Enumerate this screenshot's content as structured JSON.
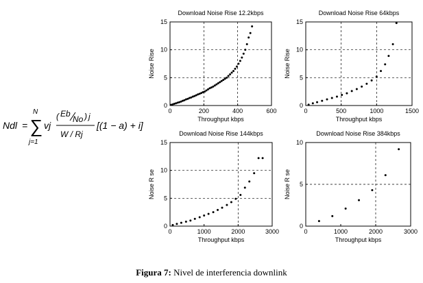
{
  "formula": {
    "lhs": "Ndl",
    "eq": "=",
    "sigma": "∑",
    "upper": "N",
    "lower": "j=1",
    "coef": "vj",
    "num_eb": "Eb",
    "num_no": "No",
    "num_j": "j",
    "den": "W / Rj",
    "tail": "[(1 − a) + i]"
  },
  "caption": {
    "label": "Figura 7:",
    "text": "Nivel de interferencia downlink"
  },
  "chart_data": [
    {
      "type": "scatter",
      "title": "Download Noise Rise 12.2kbps",
      "xlabel": "Throughput kbps",
      "ylabel": "Noise Rise",
      "xlim": [
        0,
        600
      ],
      "ylim": [
        0,
        15
      ],
      "xticks": [
        0,
        200,
        400,
        600
      ],
      "yticks": [
        0,
        5,
        10,
        15
      ],
      "grid": {
        "x": [
          200,
          400
        ],
        "y": [
          5,
          10
        ]
      },
      "series": [
        {
          "x": [
            5,
            15,
            25,
            35,
            45,
            55,
            65,
            75,
            85,
            95,
            105,
            115,
            125,
            135,
            145,
            155,
            165,
            175,
            185,
            195,
            205,
            215,
            225,
            235,
            245,
            255,
            265,
            275,
            285,
            295,
            305,
            315,
            325,
            335,
            345,
            355,
            365,
            375,
            385,
            395,
            405,
            415,
            425,
            435,
            445,
            455,
            465,
            475,
            485
          ],
          "y": [
            0.1,
            0.2,
            0.3,
            0.4,
            0.5,
            0.6,
            0.7,
            0.85,
            0.95,
            1.1,
            1.2,
            1.35,
            1.45,
            1.6,
            1.7,
            1.85,
            2.0,
            2.1,
            2.25,
            2.4,
            2.5,
            2.7,
            2.9,
            3.1,
            3.25,
            3.4,
            3.6,
            3.8,
            4.0,
            4.2,
            4.4,
            4.6,
            4.8,
            5.0,
            5.3,
            5.6,
            5.9,
            6.2,
            6.6,
            7.0,
            7.5,
            8.0,
            8.6,
            9.3,
            10.0,
            11.0,
            12.2,
            13.0,
            14.2
          ]
        }
      ]
    },
    {
      "type": "scatter",
      "title": "Download Noise Rise 64kbps",
      "xlabel": "Throughput kbps",
      "ylabel": "Noise Rise",
      "xlim": [
        0,
        1500
      ],
      "ylim": [
        0,
        15
      ],
      "xticks": [
        0,
        500,
        1000,
        1500
      ],
      "yticks": [
        0,
        5,
        10,
        15
      ],
      "grid": {
        "x": [
          500,
          1000
        ],
        "y": [
          5,
          10
        ]
      },
      "series": [
        {
          "x": [
            40,
            100,
            160,
            230,
            300,
            370,
            440,
            510,
            580,
            650,
            720,
            790,
            860,
            930,
            1000,
            1060,
            1120,
            1170,
            1230,
            1280
          ],
          "y": [
            0.15,
            0.4,
            0.6,
            0.85,
            1.1,
            1.35,
            1.6,
            1.9,
            2.2,
            2.6,
            2.95,
            3.4,
            3.9,
            4.5,
            5.2,
            6.2,
            7.4,
            8.9,
            11.0,
            14.8
          ]
        }
      ]
    },
    {
      "type": "scatter",
      "title": "Download Noise Rise 144kbps",
      "xlabel": "Throughput kbps",
      "ylabel": "Noise R se",
      "xlim": [
        0,
        3000
      ],
      "ylim": [
        0,
        15
      ],
      "xticks": [
        0,
        1000,
        2000,
        3000
      ],
      "yticks": [
        0,
        5,
        10,
        15
      ],
      "grid": {
        "x": [
          2000
        ],
        "y": [
          5,
          10
        ]
      },
      "series": [
        {
          "x": [
            80,
            200,
            330,
            470,
            600,
            730,
            870,
            1000,
            1130,
            1270,
            1400,
            1530,
            1670,
            1800,
            1930,
            2070,
            2200,
            2330,
            2470,
            2600,
            2720
          ],
          "y": [
            0.2,
            0.4,
            0.6,
            0.8,
            1.0,
            1.3,
            1.6,
            1.9,
            2.2,
            2.5,
            2.9,
            3.3,
            3.8,
            4.3,
            4.9,
            5.6,
            6.9,
            8.0,
            9.5,
            12.2,
            12.2
          ]
        }
      ]
    },
    {
      "type": "scatter",
      "title": "Download Noise Rise 384kbps",
      "xlabel": "Throughput kbps",
      "ylabel": "Noise R se",
      "xlim": [
        0,
        3000
      ],
      "ylim": [
        0,
        10
      ],
      "xticks": [
        0,
        1000,
        2000,
        3000
      ],
      "yticks": [
        0,
        5,
        10
      ],
      "grid": {
        "x": [
          2000
        ],
        "y": [
          5
        ]
      },
      "series": [
        {
          "x": [
            380,
            760,
            1140,
            1520,
            1900,
            2280,
            2660
          ],
          "y": [
            0.6,
            1.2,
            2.1,
            3.1,
            4.3,
            6.1,
            9.2
          ]
        }
      ]
    }
  ]
}
